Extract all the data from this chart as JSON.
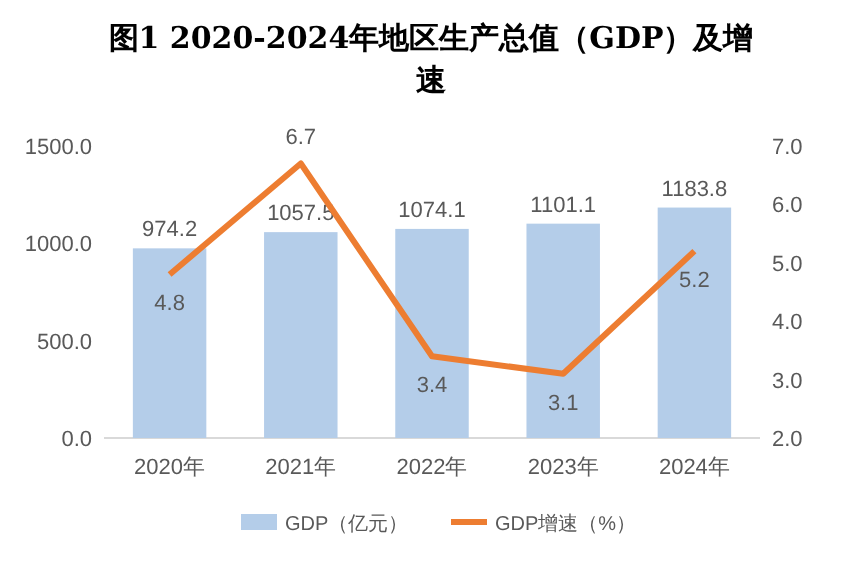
{
  "chart_data": {
    "type": "bar",
    "title": "图1 2020-2024年地区生产总值（GDP）及增速",
    "categories": [
      "2020年",
      "2021年",
      "2022年",
      "2023年",
      "2024年"
    ],
    "series": [
      {
        "name": "GDP（亿元）",
        "color": "#b4cde9",
        "values": [
          974.2,
          1057.5,
          1074.1,
          1101.1,
          1183.8
        ]
      },
      {
        "name": "GDP增速（%）",
        "type": "line",
        "axis": "y2",
        "color": "#ed7d31",
        "values": [
          4.8,
          6.7,
          3.4,
          3.1,
          5.2
        ]
      }
    ],
    "ylim": [
      0,
      1500
    ],
    "yticks": [
      {
        "value": 0,
        "label": "0.0"
      },
      {
        "value": 500,
        "label": "500.0"
      },
      {
        "value": 1000,
        "label": "1000.0"
      },
      {
        "value": 1500,
        "label": "1500.0"
      }
    ],
    "y2lim": [
      2,
      7
    ],
    "y2ticks": [
      {
        "value": 2,
        "label": "2.0"
      },
      {
        "value": 3,
        "label": "3.0"
      },
      {
        "value": 4,
        "label": "4.0"
      },
      {
        "value": 5,
        "label": "5.0"
      },
      {
        "value": 6,
        "label": "6.0"
      },
      {
        "value": 7,
        "label": "7.0"
      }
    ],
    "data_labels": true,
    "legend": "bottom",
    "marker": "none"
  }
}
